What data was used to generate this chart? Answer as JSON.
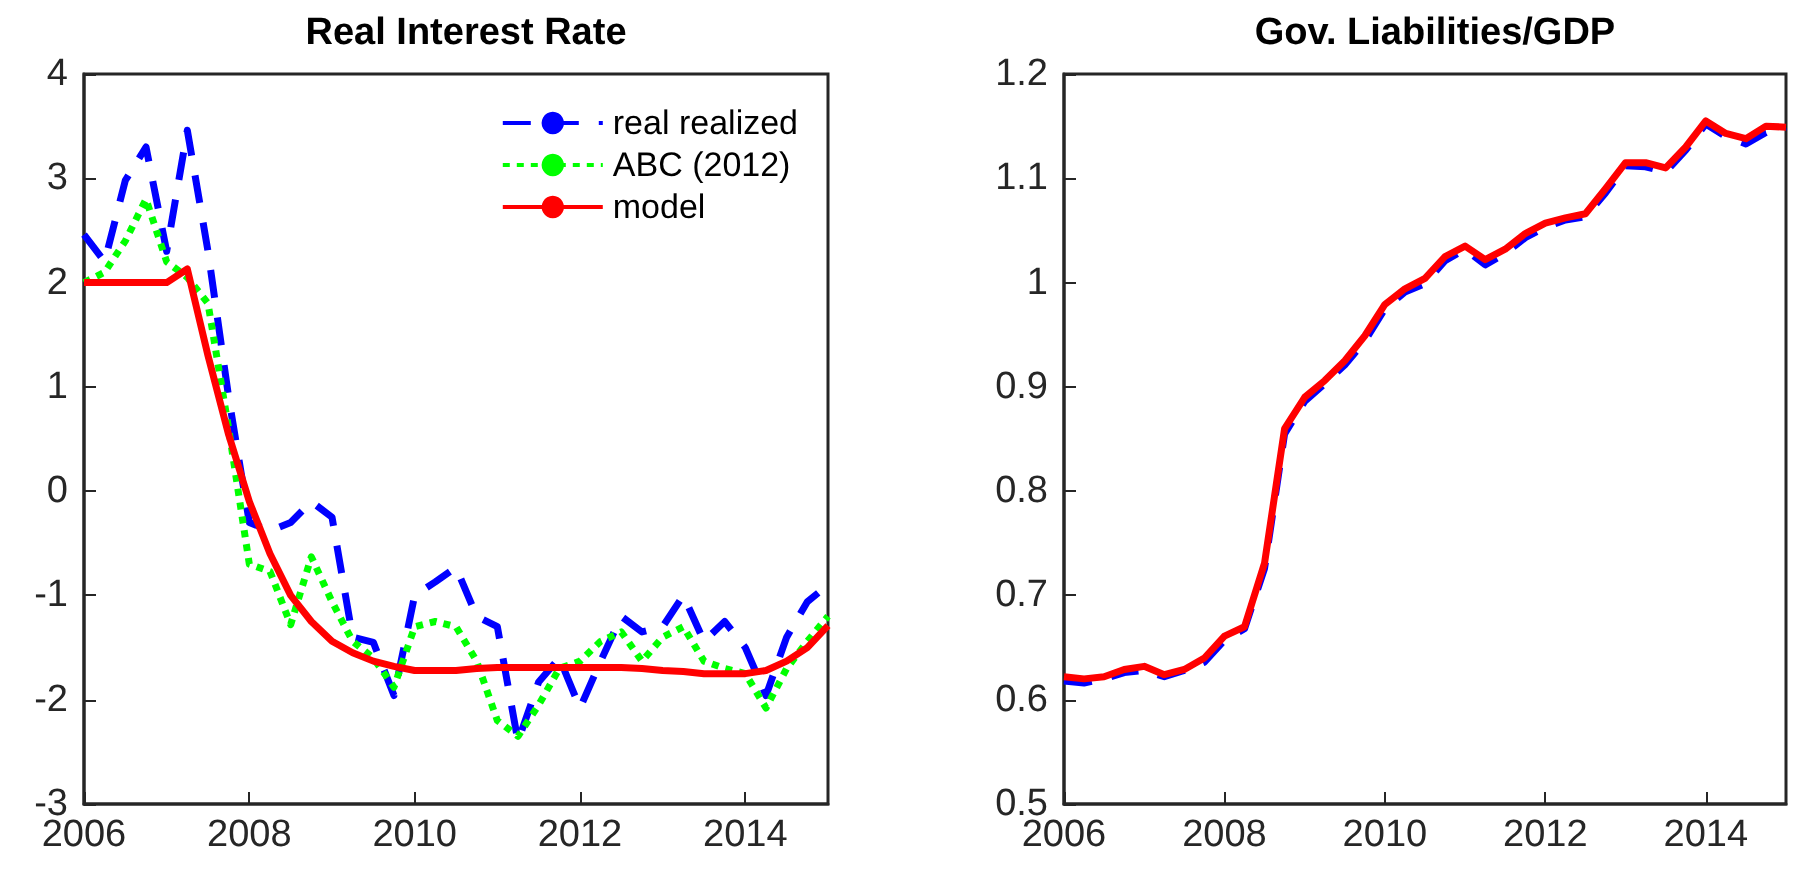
{
  "chart_data": [
    {
      "type": "line",
      "title": "Real Interest Rate",
      "xlim": [
        2006,
        2015
      ],
      "xticks": [
        2006,
        2008,
        2010,
        2012,
        2014
      ],
      "ylim": [
        -3,
        4
      ],
      "yticks": [
        -3,
        -2,
        -1,
        0,
        1,
        2,
        3,
        4
      ],
      "grid": false,
      "legend": "top right",
      "x": [
        2006,
        2006.25,
        2006.5,
        2006.75,
        2007,
        2007.25,
        2007.5,
        2007.75,
        2008,
        2008.25,
        2008.5,
        2008.75,
        2009,
        2009.25,
        2009.5,
        2009.75,
        2010,
        2010.25,
        2010.5,
        2010.75,
        2011,
        2011.25,
        2011.5,
        2011.75,
        2012,
        2012.25,
        2012.5,
        2012.75,
        2013,
        2013.25,
        2013.5,
        2013.75,
        2014,
        2014.25,
        2014.5,
        2014.75,
        2015
      ],
      "series": [
        {
          "name": "real realized",
          "color": "#0000ff",
          "line_style": "dashed",
          "values": [
            2.46,
            2.2,
            2.98,
            3.3,
            2.3,
            3.46,
            2.3,
            0.9,
            -0.3,
            -0.38,
            -0.3,
            -0.1,
            -0.25,
            -1.4,
            -1.45,
            -1.96,
            -1.0,
            -0.87,
            -0.73,
            -1.2,
            -1.3,
            -2.4,
            -1.83,
            -1.6,
            -2.08,
            -1.63,
            -1.2,
            -1.35,
            -1.3,
            -1.0,
            -1.44,
            -1.25,
            -1.5,
            -1.96,
            -1.4,
            -1.06,
            -0.9
          ]
        },
        {
          "name": "ABC (2012)",
          "color": "#00ff00",
          "line_style": "dotted",
          "values": [
            2.0,
            2.1,
            2.4,
            2.8,
            2.2,
            2.05,
            1.8,
            0.6,
            -0.7,
            -0.77,
            -1.28,
            -0.63,
            -1.06,
            -1.44,
            -1.6,
            -1.88,
            -1.3,
            -1.25,
            -1.3,
            -1.63,
            -2.2,
            -2.35,
            -2.05,
            -1.7,
            -1.63,
            -1.44,
            -1.35,
            -1.63,
            -1.4,
            -1.3,
            -1.63,
            -1.7,
            -1.75,
            -2.08,
            -1.7,
            -1.44,
            -1.2
          ]
        },
        {
          "name": "model",
          "color": "#ff0000",
          "line_style": "solid",
          "values": [
            2.0,
            2.0,
            2.0,
            2.0,
            2.0,
            2.13,
            1.3,
            0.54,
            -0.1,
            -0.6,
            -1.0,
            -1.25,
            -1.44,
            -1.55,
            -1.63,
            -1.68,
            -1.72,
            -1.72,
            -1.72,
            -1.7,
            -1.69,
            -1.69,
            -1.69,
            -1.69,
            -1.69,
            -1.69,
            -1.69,
            -1.7,
            -1.72,
            -1.73,
            -1.75,
            -1.75,
            -1.75,
            -1.72,
            -1.63,
            -1.5,
            -1.29
          ]
        }
      ]
    },
    {
      "type": "line",
      "title": "Gov. Liabilities/GDP",
      "xlim": [
        2006,
        2015
      ],
      "xticks": [
        2006,
        2008,
        2010,
        2012,
        2014
      ],
      "ylim": [
        0.5,
        1.2
      ],
      "yticks": [
        0.5,
        0.6,
        0.7,
        0.8,
        0.9,
        1,
        1.1,
        1.2
      ],
      "grid": false,
      "x": [
        2006,
        2006.25,
        2006.5,
        2006.75,
        2007,
        2007.25,
        2007.5,
        2007.75,
        2008,
        2008.25,
        2008.5,
        2008.75,
        2009,
        2009.25,
        2009.5,
        2009.75,
        2010,
        2010.25,
        2010.5,
        2010.75,
        2011,
        2011.25,
        2011.5,
        2011.75,
        2012,
        2012.25,
        2012.5,
        2012.75,
        2013,
        2013.25,
        2013.5,
        2013.75,
        2014,
        2014.25,
        2014.5,
        2014.75,
        2015
      ],
      "series": [
        {
          "color": "#0000ff",
          "line_style": "dashed",
          "values": [
            0.618,
            0.616,
            0.62,
            0.626,
            0.628,
            0.622,
            0.628,
            0.636,
            0.657,
            0.668,
            0.726,
            0.855,
            0.886,
            0.903,
            0.921,
            0.944,
            0.975,
            0.991,
            0.999,
            1.021,
            1.032,
            1.017,
            1.028,
            1.043,
            1.053,
            1.06,
            1.063,
            1.086,
            1.112,
            1.111,
            1.106,
            1.127,
            1.152,
            1.14,
            1.133,
            1.144,
            1.149
          ]
        },
        {
          "color": "#ff0000",
          "line_style": "solid",
          "values": [
            0.622,
            0.62,
            0.622,
            0.629,
            0.632,
            0.624,
            0.629,
            0.64,
            0.661,
            0.67,
            0.731,
            0.86,
            0.89,
            0.906,
            0.925,
            0.949,
            0.979,
            0.994,
            1.004,
            1.025,
            1.035,
            1.022,
            1.032,
            1.047,
            1.057,
            1.062,
            1.066,
            1.09,
            1.115,
            1.115,
            1.11,
            1.13,
            1.155,
            1.143,
            1.138,
            1.15,
            1.149
          ]
        }
      ]
    }
  ]
}
